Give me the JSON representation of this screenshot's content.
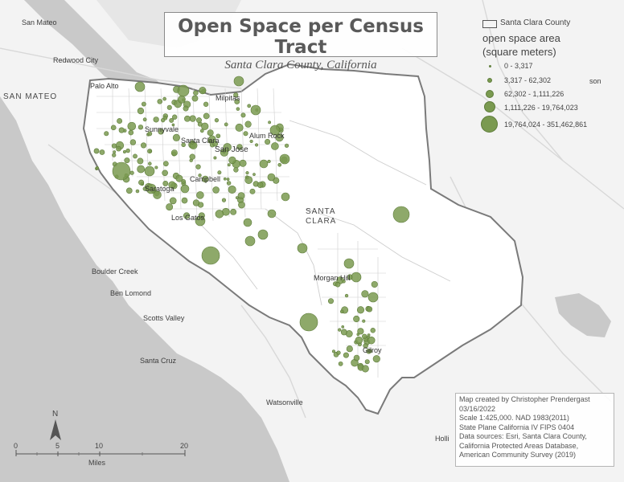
{
  "title": "Open Space per Census Tract",
  "subtitle": "Santa Clara County, California",
  "legend": {
    "county_label": "Santa Clara County",
    "size_title_line1": "open space area",
    "size_title_line2": "(square meters)",
    "classes": [
      {
        "label": "0 - 3,317"
      },
      {
        "label": "3,317 - 62,302"
      },
      {
        "label": "62,302 - 1,111,226"
      },
      {
        "label": "1,111,226 - 19,764,023"
      },
      {
        "label": "19,764,024 - 351,462,861"
      }
    ],
    "symbol_color": "#7a9a50"
  },
  "credits": {
    "lines": [
      "Map created by Christopher Prendergast",
      "03/16/2022",
      "Scale 1:425,000. NAD 1983(2011)",
      "State Plane California IV FIPS 0404",
      "Data sources: Esri, Santa Clara County,",
      "California Protected Areas Database,",
      "American Community Survey (2019)"
    ]
  },
  "scale_bar": {
    "north": "N",
    "ticks": [
      "0",
      "5",
      "10",
      "20"
    ],
    "units": "Miles"
  },
  "places": {
    "san_mateo_city": "San Mateo",
    "redwood_city": "Redwood City",
    "san_mateo_county": "SAN MATEO",
    "palo_alto": "Palo Alto",
    "milpitas": "Milpitas",
    "sunnyvale": "Sunnyvale",
    "santa_clara_city": "Santa Clara",
    "alum_rock": "Alum Rock",
    "san_jose": "San Jose",
    "campbell": "Campbell",
    "saratoga": "Saratoga",
    "los_gatos": "Los Gatos",
    "santa_clara_county1": "SANTA",
    "santa_clara_county2": "CLARA",
    "boulder_creek": "Boulder Creek",
    "ben_lomond": "Ben Lomond",
    "scotts_valley": "Scotts Valley",
    "santa_cruz": "Santa Cruz",
    "watsonville": "Watsonville",
    "morgan_hill": "Morgan Hill",
    "gilroy": "Gilroy",
    "holli": "Holli",
    "son": "son"
  }
}
